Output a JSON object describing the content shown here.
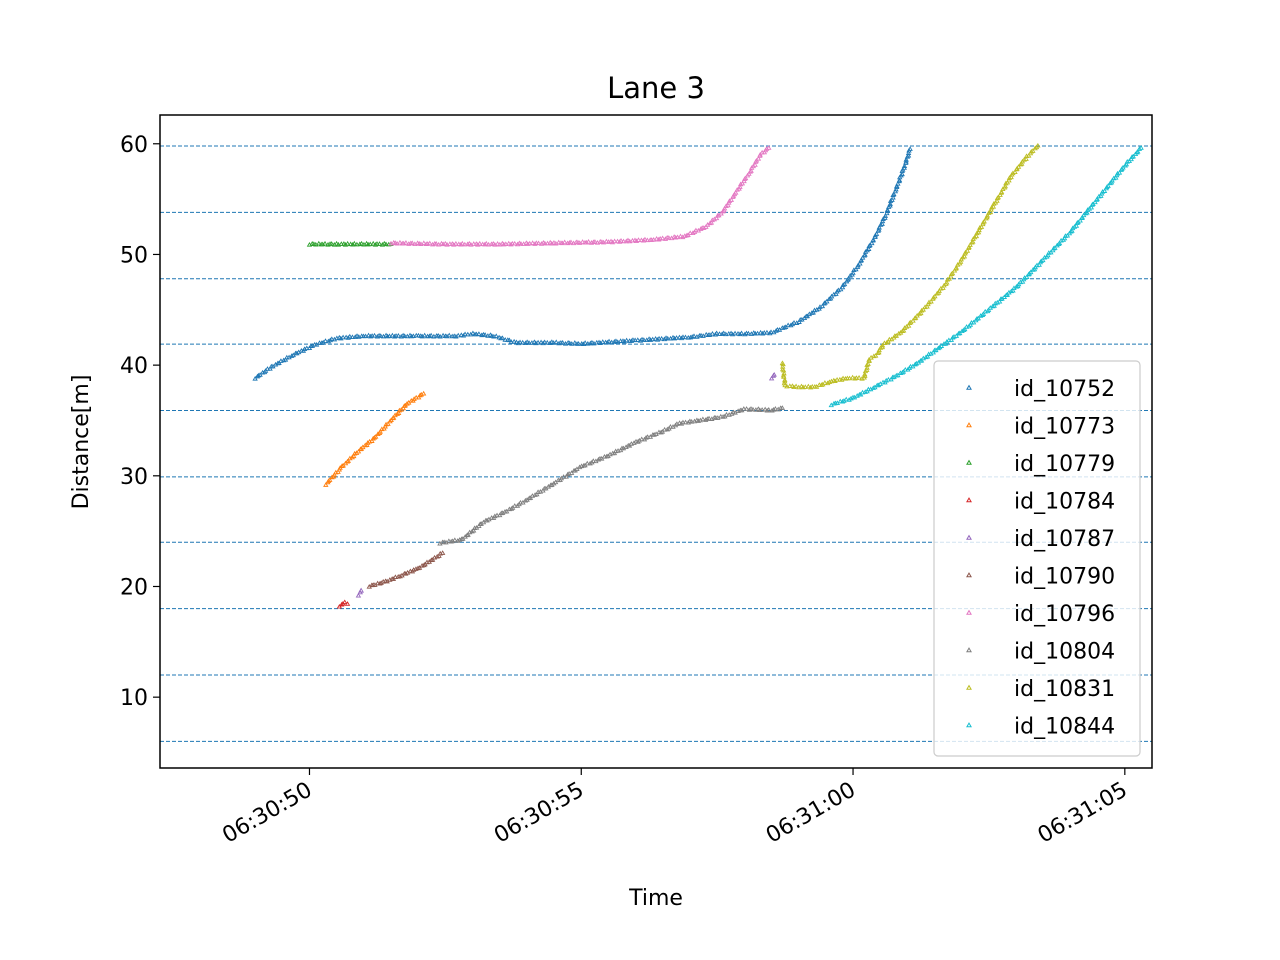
{
  "chart_data": {
    "type": "scatter",
    "title": "Lane 3",
    "xlabel": "Time",
    "ylabel": "Distance[m]",
    "x_ticks": [
      "06:30:50",
      "06:30:55",
      "06:31:00",
      "06:31:05"
    ],
    "x_tick_values": [
      "06:30:50",
      "06:30:55",
      "06:31:00",
      "06:31:05"
    ],
    "xlim": [
      "06:30:47.25",
      "06:31:05.5"
    ],
    "y_ticks": [
      10,
      20,
      30,
      40,
      50,
      60
    ],
    "ylim": [
      3.6,
      62.6
    ],
    "reference_lines": [
      6.0,
      12.0,
      18.0,
      24.0,
      29.9,
      35.9,
      41.9,
      47.8,
      53.8,
      59.8
    ],
    "legend": {
      "position": "lower-right"
    },
    "marker": "triangle",
    "series": [
      {
        "name": "id_10752",
        "color": "#1f77b4",
        "points": [
          [
            "06:30:49.0",
            38.8
          ],
          [
            "06:30:49.3",
            39.8
          ],
          [
            "06:30:49.7",
            40.9
          ],
          [
            "06:30:50.1",
            41.8
          ],
          [
            "06:30:50.5",
            42.4
          ],
          [
            "06:30:51.0",
            42.6
          ],
          [
            "06:30:52.0",
            42.6
          ],
          [
            "06:30:52.7",
            42.6
          ],
          [
            "06:30:53.0",
            42.8
          ],
          [
            "06:30:53.4",
            42.6
          ],
          [
            "06:30:53.8",
            42.0
          ],
          [
            "06:30:54.5",
            42.0
          ],
          [
            "06:30:55.0",
            41.9
          ],
          [
            "06:30:56.0",
            42.2
          ],
          [
            "06:30:57.0",
            42.5
          ],
          [
            "06:30:57.5",
            42.8
          ],
          [
            "06:30:58.0",
            42.8
          ],
          [
            "06:30:58.5",
            42.9
          ],
          [
            "06:30:59.0",
            43.9
          ],
          [
            "06:30:59.4",
            45.2
          ],
          [
            "06:30:59.8",
            47.0
          ],
          [
            "06:31:00.1",
            49.0
          ],
          [
            "06:31:00.4",
            51.5
          ],
          [
            "06:31:00.6",
            53.5
          ],
          [
            "06:31:00.8",
            56.0
          ],
          [
            "06:31:00.95",
            58.0
          ],
          [
            "06:31:01.05",
            59.5
          ]
        ]
      },
      {
        "name": "id_10773",
        "color": "#ff7f0e",
        "points": [
          [
            "06:30:50.3",
            29.2
          ],
          [
            "06:30:50.6",
            30.8
          ],
          [
            "06:30:50.9",
            32.2
          ],
          [
            "06:30:51.2",
            33.4
          ],
          [
            "06:30:51.5",
            35.0
          ],
          [
            "06:30:51.8",
            36.5
          ],
          [
            "06:30:52.1",
            37.4
          ]
        ]
      },
      {
        "name": "id_10779",
        "color": "#2ca02c",
        "points": [
          [
            "06:30:50.0",
            50.9
          ],
          [
            "06:30:50.5",
            50.9
          ],
          [
            "06:30:51.0",
            50.9
          ],
          [
            "06:30:51.5",
            50.9
          ]
        ]
      },
      {
        "name": "id_10784",
        "color": "#d62728",
        "points": [
          [
            "06:30:50.55",
            18.2
          ],
          [
            "06:30:50.65",
            18.5
          ],
          [
            "06:30:50.7",
            18.4
          ]
        ]
      },
      {
        "name": "id_10787",
        "color": "#9467bd",
        "points": [
          [
            "06:30:50.9",
            19.2
          ],
          [
            "06:30:50.95",
            19.6
          ],
          [
            "06:30:58.5",
            38.8
          ],
          [
            "06:30:58.55",
            39.1
          ]
        ]
      },
      {
        "name": "id_10790",
        "color": "#8c564b",
        "points": [
          [
            "06:30:51.1",
            20.0
          ],
          [
            "06:30:51.4",
            20.4
          ],
          [
            "06:30:51.7",
            21.0
          ],
          [
            "06:30:52.0",
            21.6
          ],
          [
            "06:30:52.2",
            22.2
          ],
          [
            "06:30:52.45",
            23.0
          ]
        ]
      },
      {
        "name": "id_10796",
        "color": "#e377c2",
        "points": [
          [
            "06:30:51.5",
            51.0
          ],
          [
            "06:30:52.5",
            50.9
          ],
          [
            "06:30:53.5",
            50.9
          ],
          [
            "06:30:54.5",
            51.0
          ],
          [
            "06:30:55.5",
            51.1
          ],
          [
            "06:30:56.3",
            51.3
          ],
          [
            "06:30:56.9",
            51.6
          ],
          [
            "06:30:57.3",
            52.5
          ],
          [
            "06:30:57.6",
            53.8
          ],
          [
            "06:30:57.85",
            55.6
          ],
          [
            "06:30:58.1",
            57.4
          ],
          [
            "06:30:58.3",
            59.0
          ],
          [
            "06:30:58.45",
            59.6
          ]
        ]
      },
      {
        "name": "id_10804",
        "color": "#7f7f7f",
        "points": [
          [
            "06:30:52.4",
            23.9
          ],
          [
            "06:30:52.8",
            24.2
          ],
          [
            "06:30:53.2",
            25.8
          ],
          [
            "06:30:53.6",
            26.7
          ],
          [
            "06:30:54.0",
            27.8
          ],
          [
            "06:30:54.5",
            29.3
          ],
          [
            "06:30:55.0",
            30.8
          ],
          [
            "06:30:55.5",
            31.8
          ],
          [
            "06:30:56.0",
            33.0
          ],
          [
            "06:30:56.5",
            34.0
          ],
          [
            "06:30:56.8",
            34.7
          ],
          [
            "06:30:57.2",
            35.0
          ],
          [
            "06:30:57.6",
            35.3
          ],
          [
            "06:30:58.0",
            36.0
          ],
          [
            "06:30:58.5",
            35.9
          ],
          [
            "06:30:58.7",
            36.1
          ]
        ]
      },
      {
        "name": "id_10831",
        "color": "#bcbd22",
        "points": [
          [
            "06:30:58.7",
            40.2
          ],
          [
            "06:30:58.75",
            38.1
          ],
          [
            "06:30:59.0",
            38.0
          ],
          [
            "06:30:59.3",
            38.0
          ],
          [
            "06:30:59.6",
            38.5
          ],
          [
            "06:30:59.9",
            38.8
          ],
          [
            "06:31:00.2",
            38.8
          ],
          [
            "06:31:00.3",
            40.5
          ],
          [
            "06:31:00.45",
            41.0
          ],
          [
            "06:31:00.55",
            41.8
          ],
          [
            "06:31:00.9",
            43.0
          ],
          [
            "06:31:01.3",
            45.0
          ],
          [
            "06:31:01.7",
            47.3
          ],
          [
            "06:31:02.0",
            49.5
          ],
          [
            "06:31:02.3",
            52.0
          ],
          [
            "06:31:02.6",
            54.5
          ],
          [
            "06:31:02.9",
            57.0
          ],
          [
            "06:31:03.2",
            58.8
          ],
          [
            "06:31:03.4",
            59.8
          ]
        ]
      },
      {
        "name": "id_10844",
        "color": "#17becf",
        "points": [
          [
            "06:30:59.6",
            36.4
          ],
          [
            "06:31:00.0",
            37.0
          ],
          [
            "06:31:00.4",
            38.0
          ],
          [
            "06:31:00.8",
            39.0
          ],
          [
            "06:31:01.2",
            40.2
          ],
          [
            "06:31:01.6",
            41.6
          ],
          [
            "06:31:02.0",
            43.0
          ],
          [
            "06:31:02.5",
            45.0
          ],
          [
            "06:31:03.0",
            47.0
          ],
          [
            "06:31:03.5",
            49.5
          ],
          [
            "06:31:04.0",
            52.0
          ],
          [
            "06:31:04.5",
            55.0
          ],
          [
            "06:31:05.0",
            58.0
          ],
          [
            "06:31:05.3",
            59.6
          ]
        ]
      }
    ]
  }
}
